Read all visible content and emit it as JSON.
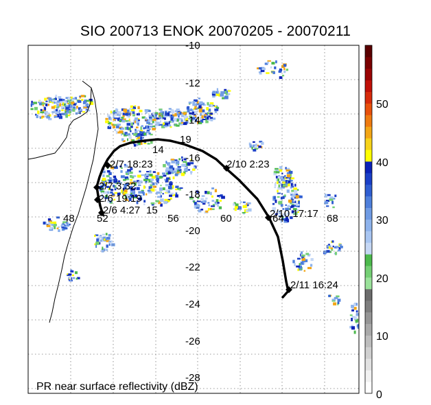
{
  "title": "SIO 200713 ENOK 20070205 - 20070211",
  "map": {
    "lat_ticks": [
      "-10",
      "-12",
      "-14",
      "-16",
      "-18",
      "-20",
      "-22",
      "-24",
      "-26",
      "-28"
    ],
    "lon_ticks": [
      "48",
      "52",
      "56",
      "60",
      "64",
      "68"
    ],
    "caption": "PR near surface reflectivity (dBZ)"
  },
  "track": {
    "labels": [
      "2/7 18:23",
      "2/7 3:32",
      "2/6 19:19",
      "2/6 4:27",
      "2/10 2:23",
      "2/10 17:17",
      "2/11 16:24"
    ],
    "fragments": [
      "14",
      "19",
      "15"
    ]
  },
  "colorbar": {
    "ticks": [
      "50",
      "40",
      "30",
      "20",
      "10",
      "0"
    ],
    "colors": [
      "#ffffff",
      "#f2f2f2",
      "#e2e2e2",
      "#d0d0d0",
      "#bdbdbd",
      "#a9a9a9",
      "#959595",
      "#7e7e7e",
      "#6c6c6c",
      "#9be29b",
      "#74cf74",
      "#4cb94c",
      "#c6d8f5",
      "#a9c6f2",
      "#8eb3ec",
      "#6f9be4",
      "#4e7fdb",
      "#2f5ed1",
      "#1a3fc7",
      "#0b22b8",
      "#ffff00",
      "#f7d31a",
      "#f3a616",
      "#ef7b10",
      "#e8510c",
      "#d72b0b",
      "#c01008",
      "#9a0404",
      "#7a0000",
      "#5a0000"
    ]
  }
}
